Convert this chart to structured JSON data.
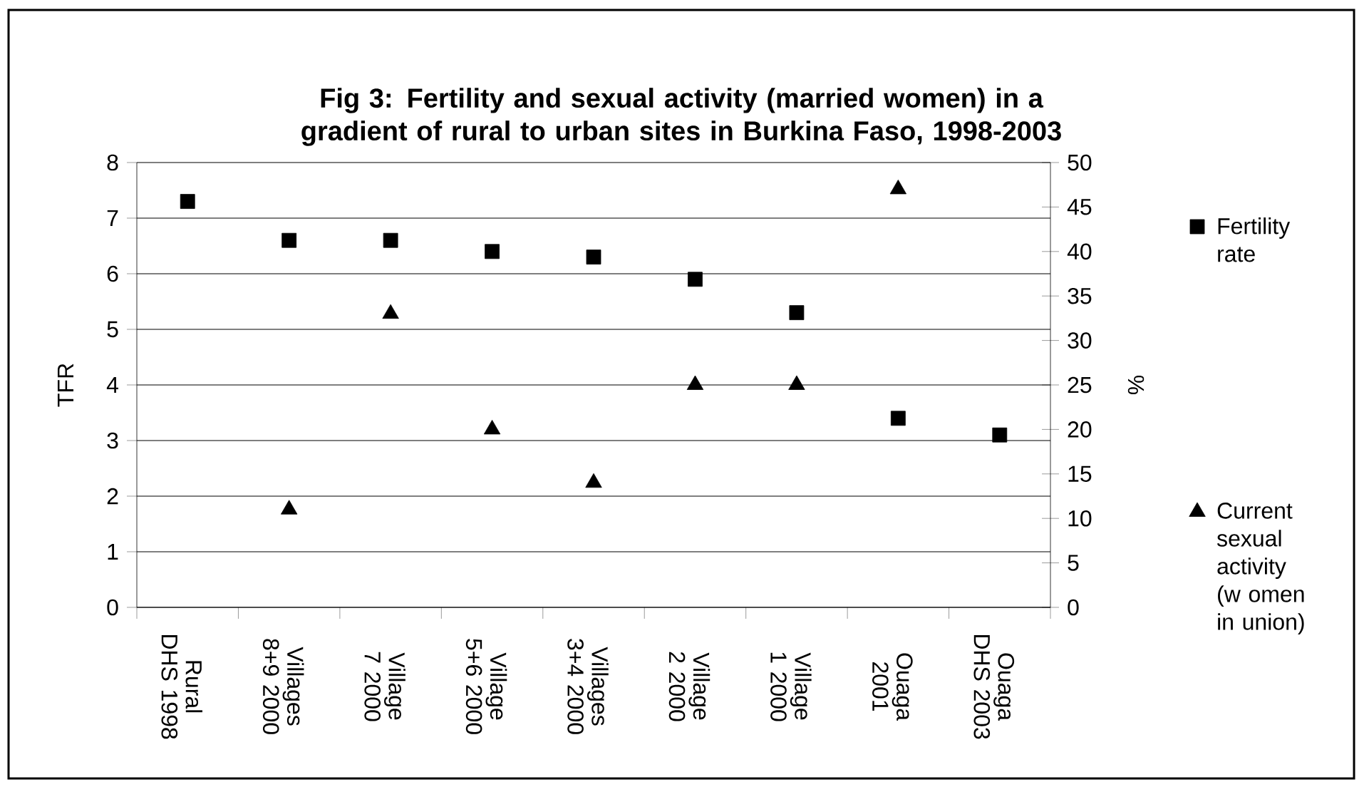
{
  "chart_data": {
    "type": "scatter",
    "title": "Fig 3: Fertility and sexual activity (married women) in a gradient of rural to urban sites in Burkina Faso, 1998-2003",
    "ylabel": "TFR",
    "y2label": "%",
    "categories": [
      "Rural DHS 1998",
      "Villages 8+9 2000",
      "Village 7 2000",
      "Village 5+6 2000",
      "Villages 3+4 2000",
      "Village 2 2000",
      "Village 1 2000",
      "Ouaga 2001",
      "Ouaga DHS 2003"
    ],
    "ylim": [
      0,
      8
    ],
    "yticks": [
      0,
      1,
      2,
      3,
      4,
      5,
      6,
      7,
      8
    ],
    "y2lim": [
      0,
      50
    ],
    "y2ticks": [
      0,
      5,
      10,
      15,
      20,
      25,
      30,
      35,
      40,
      45,
      50
    ],
    "grid": "y",
    "legend": "right",
    "series": [
      {
        "name": "Fertility rate",
        "color": "#000000",
        "marker": "square",
        "values": [
          7.3,
          6.6,
          6.6,
          6.4,
          6.3,
          5.9,
          5.3,
          3.4,
          3.1
        ]
      },
      {
        "name": "Current sexual activity (w omen in union)",
        "color": "#000000",
        "marker": "triangle",
        "axis": "y2",
        "values": [
          null,
          11,
          33,
          20,
          14,
          25,
          25,
          47,
          null
        ]
      }
    ]
  }
}
